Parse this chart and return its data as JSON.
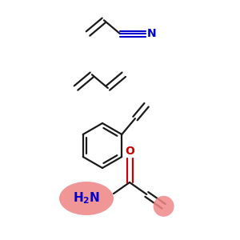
{
  "bg_color": "#ffffff",
  "black": "#1a1a1a",
  "blue": "#0000cc",
  "red_highlight": "#f08888",
  "red_atom": "#cc0000",
  "lw": 1.6,
  "bl": 0.085
}
